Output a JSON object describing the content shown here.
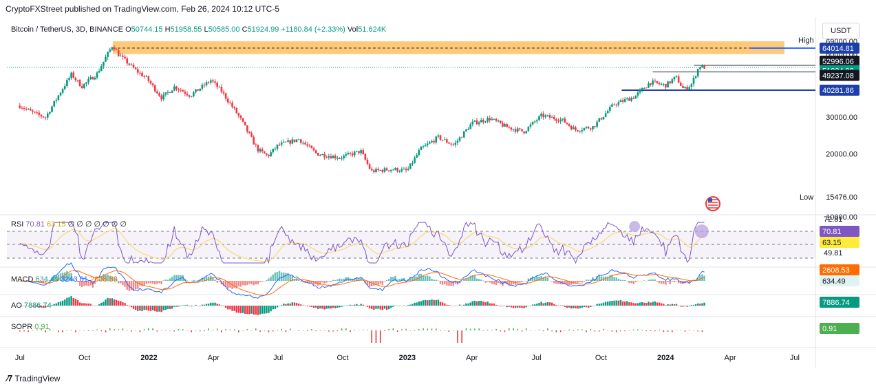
{
  "header": {
    "published": "CryptoFXStreet published on TradingView.com, Feb 26, 2024 10:12 UTC-5",
    "symbol": "Bitcoin / TetherUS, 3D, BINANCE",
    "ohlc": [
      {
        "k": "O",
        "v": "50744.15"
      },
      {
        "k": "H",
        "v": "51958.55"
      },
      {
        "k": "L",
        "v": "50585.00"
      },
      {
        "k": "C",
        "v": "51924.99"
      },
      {
        "k": "",
        "v": "+1180.84 (+2.33%)"
      },
      {
        "k": "Vol",
        "v": "51.624K"
      }
    ],
    "currency": "USDT"
  },
  "colors": {
    "up": "#089981",
    "down": "#f23645",
    "accent": "#2962ff",
    "zone": "#ffb74d",
    "rsi": "#7e57c2",
    "sma": "#f7dc6f"
  },
  "chart_data": {
    "type": "candlestick",
    "x_ticks": [
      "Jul",
      "Oct",
      "2022",
      "Apr",
      "Jul",
      "Oct",
      "2023",
      "Apr",
      "Jul",
      "Oct",
      "2024",
      "Apr",
      "Jul"
    ],
    "y_ticks": [
      "69000.00",
      "60000.00",
      "30000.00",
      "20000.00",
      "10000.00"
    ],
    "y_scale": "log",
    "high_label": "High",
    "low_label": "Low",
    "low_value": "15476.00",
    "price_tags": [
      "64014.81",
      "52996.06",
      "51924.99",
      "49237.08",
      "40281.86"
    ],
    "price_path": [
      [
        2021.5,
        34000
      ],
      [
        2021.56,
        31000
      ],
      [
        2021.6,
        29900
      ],
      [
        2021.66,
        40000
      ],
      [
        2021.7,
        48000
      ],
      [
        2021.74,
        42000
      ],
      [
        2021.8,
        48500
      ],
      [
        2021.84,
        60000
      ],
      [
        2021.86,
        66500
      ],
      [
        2021.88,
        60000
      ],
      [
        2021.95,
        50000
      ],
      [
        2021.99,
        46000
      ],
      [
        2022.05,
        37000
      ],
      [
        2022.1,
        42000
      ],
      [
        2022.16,
        38000
      ],
      [
        2022.24,
        45000
      ],
      [
        2022.28,
        40000
      ],
      [
        2022.35,
        30000
      ],
      [
        2022.42,
        21000
      ],
      [
        2022.46,
        19500
      ],
      [
        2022.5,
        22000
      ],
      [
        2022.58,
        23500
      ],
      [
        2022.65,
        20000
      ],
      [
        2022.74,
        19200
      ],
      [
        2022.82,
        20600
      ],
      [
        2022.86,
        16500
      ],
      [
        2022.94,
        16900
      ],
      [
        2023.0,
        16600
      ],
      [
        2023.05,
        21000
      ],
      [
        2023.12,
        24000
      ],
      [
        2023.18,
        22000
      ],
      [
        2023.25,
        28000
      ],
      [
        2023.32,
        29500
      ],
      [
        2023.38,
        27000
      ],
      [
        2023.45,
        25500
      ],
      [
        2023.52,
        30500
      ],
      [
        2023.6,
        29000
      ],
      [
        2023.65,
        26000
      ],
      [
        2023.72,
        27000
      ],
      [
        2023.8,
        34500
      ],
      [
        2023.88,
        37500
      ],
      [
        2023.94,
        44000
      ],
      [
        2024.0,
        42500
      ],
      [
        2024.04,
        46500
      ],
      [
        2024.07,
        40500
      ],
      [
        2024.1,
        43000
      ],
      [
        2024.13,
        52500
      ],
      [
        2024.15,
        51925
      ]
    ],
    "candle_count": 320,
    "zone": {
      "from": 60000,
      "to": 69000
    },
    "levels": [
      {
        "value": 64014.81,
        "style": "dashed"
      },
      {
        "value": 52996.06,
        "style": "line"
      },
      {
        "value": 49237.08,
        "style": "line"
      },
      {
        "value": 40281.86,
        "style": "line"
      }
    ],
    "current": 51924.99,
    "indicators": {
      "rsi": {
        "label": "RSI",
        "v1": "70.81",
        "v2": "63.15",
        "na": [
          "∅",
          "∅",
          "∅",
          "∅",
          "∅",
          "∅",
          "∅"
        ],
        "ticks": [
          "72.81",
          "49.81"
        ],
        "tag1": "70.81",
        "tag2": "63.15"
      },
      "macd": {
        "label": "MACD",
        "v1": "634.49",
        "v2": "3243.01",
        "v3": "2608.53",
        "tag1": "2608.53",
        "tag2": "634.49"
      },
      "ao": {
        "label": "AO",
        "v1": "7886.74",
        "tag": "7886.74"
      },
      "sopr": {
        "label": "SOPR",
        "v1": "0.91",
        "tag": "0.91"
      }
    }
  },
  "footer": {
    "brand": "TradingView"
  }
}
